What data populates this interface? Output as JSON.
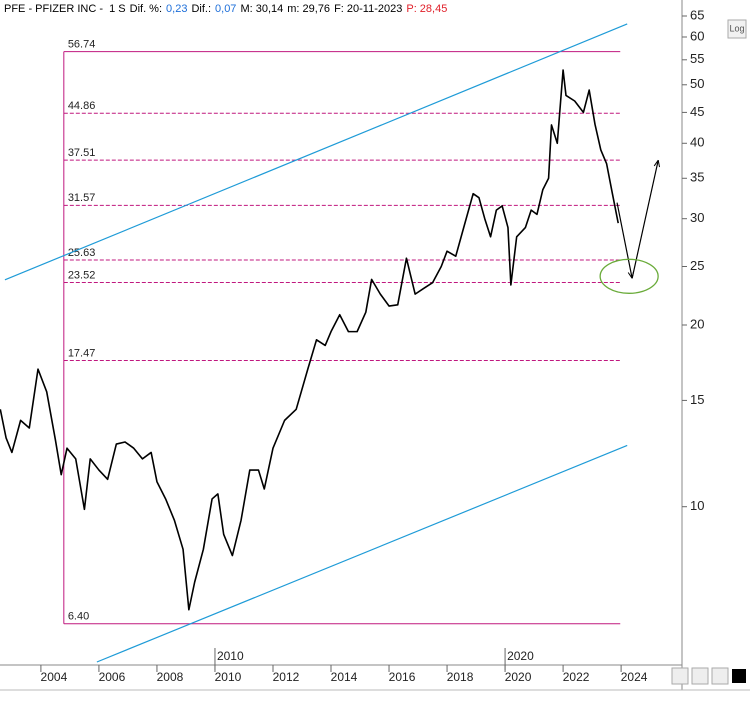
{
  "chart_data": {
    "type": "line",
    "header": [
      {
        "text": "PFE - PFIZER INC -  1 S",
        "color": "#000000"
      },
      {
        "text": "Dif. %:",
        "color": "#000000"
      },
      {
        "text": "0,23",
        "color": "#1e6fd9"
      },
      {
        "text": "Dif.:",
        "color": "#000000"
      },
      {
        "text": "0,07",
        "color": "#1e6fd9"
      },
      {
        "text": "M: 30,14",
        "color": "#000000"
      },
      {
        "text": "m: 29,76",
        "color": "#000000"
      },
      {
        "text": "F: 20-11-2023",
        "color": "#000000"
      },
      {
        "text": "P: 28,45",
        "color": "#e0202a"
      }
    ],
    "log_button": "Log",
    "log_scale": true,
    "xlim": [
      2002.59,
      2026.03
    ],
    "ylim": [
      5.53,
      66
    ],
    "xticks": [
      2004,
      2006,
      2008,
      2010,
      2012,
      2014,
      2016,
      2018,
      2020,
      2022,
      2024
    ],
    "decade_markers": [
      2010,
      2020
    ],
    "yticks": [
      10,
      15,
      20,
      25,
      30,
      35,
      40,
      45,
      50,
      55,
      60,
      65
    ],
    "x": [
      2002.6,
      2002.8,
      2003.0,
      2003.3,
      2003.6,
      2003.9,
      2004.2,
      2004.5,
      2004.7,
      2004.9,
      2005.2,
      2005.5,
      2005.7,
      2006.0,
      2006.3,
      2006.6,
      2006.9,
      2007.2,
      2007.5,
      2007.8,
      2008.0,
      2008.3,
      2008.6,
      2008.9,
      2009.1,
      2009.3,
      2009.6,
      2009.9,
      2010.1,
      2010.3,
      2010.6,
      2010.9,
      2011.2,
      2011.5,
      2011.7,
      2012.0,
      2012.4,
      2012.8,
      2013.2,
      2013.5,
      2013.8,
      2014.0,
      2014.3,
      2014.6,
      2014.9,
      2015.2,
      2015.4,
      2015.7,
      2016.0,
      2016.3,
      2016.6,
      2016.9,
      2017.2,
      2017.5,
      2017.8,
      2018.0,
      2018.3,
      2018.6,
      2018.9,
      2019.1,
      2019.3,
      2019.5,
      2019.7,
      2019.9,
      2020.1,
      2020.2,
      2020.4,
      2020.7,
      2020.9,
      2021.1,
      2021.3,
      2021.5,
      2021.6,
      2021.8,
      2022.0,
      2022.1,
      2022.4,
      2022.7,
      2022.9,
      2023.1,
      2023.3,
      2023.5,
      2023.7,
      2023.9
    ],
    "series": [
      {
        "color": "#000000",
        "values": [
          14.5,
          13,
          12.3,
          13.9,
          13.5,
          16.9,
          15.5,
          12.9,
          11.3,
          12.5,
          12,
          9.9,
          12,
          11.5,
          11.1,
          12.7,
          12.8,
          12.5,
          12,
          12.3,
          11,
          10.3,
          9.5,
          8.5,
          6.75,
          7.5,
          8.5,
          10.3,
          10.5,
          9,
          8.3,
          9.5,
          11.5,
          11.5,
          10.7,
          12.5,
          13.9,
          14.5,
          16.9,
          18.9,
          18.5,
          19.5,
          20.8,
          19.5,
          19.5,
          21,
          23.8,
          22.5,
          21.5,
          21.6,
          25.8,
          22.5,
          23,
          23.5,
          25,
          26.5,
          26,
          29.3,
          33,
          32.5,
          30,
          28,
          31,
          31.5,
          29,
          23.3,
          28,
          29,
          31,
          30.5,
          33.5,
          35,
          42.9,
          40,
          52.9,
          48,
          47,
          45,
          49,
          43,
          39,
          37,
          33,
          29.5
        ]
      }
    ],
    "fib_levels": {
      "values": [
        56.74,
        44.86,
        37.51,
        31.57,
        25.63,
        23.52,
        17.47,
        6.4
      ],
      "value_labels": [
        "56.74",
        "44.86",
        "37.51",
        "31.57",
        "25.63",
        "23.52",
        "17.47",
        "6.40"
      ],
      "x_range": [
        2004.79,
        2023.97
      ],
      "color": "#c0187f"
    },
    "channel_lines": {
      "color": "#1e9bd7",
      "lines": [
        {
          "x": [
            2002.76,
            2024.21
          ],
          "values": [
            23.76,
            63.05
          ]
        },
        {
          "x": [
            2005.93,
            2024.21
          ],
          "values": [
            5.53,
            12.63
          ]
        }
      ]
    },
    "arrow": {
      "color": "#000000",
      "x": [
        2023.86,
        2024.38,
        2025.28
      ],
      "values": [
        31.9,
        23.9,
        37.5
      ]
    },
    "target_ellipse_color": "#6aab3a"
  }
}
